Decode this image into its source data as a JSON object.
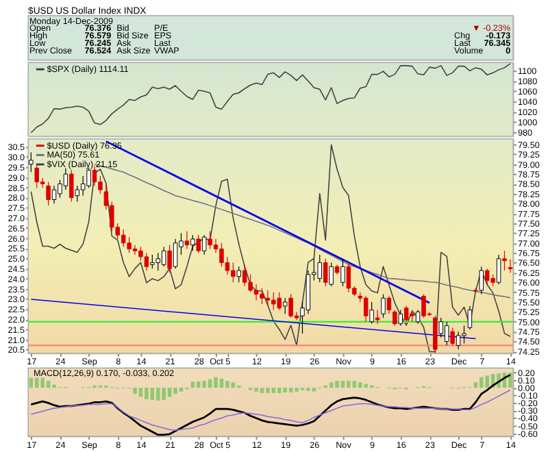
{
  "chart_data": [
    {
      "type": "other",
      "title": "$USD US Dollar Index INDX",
      "annotations": [
        "Monday 14-Dec-2009",
        "Open",
        "76.376",
        "High",
        "76.579",
        "Low",
        "76.245",
        "Prev Close",
        "76.524",
        "Bid",
        "Bid Size",
        "Ask",
        "Ask Size",
        "P/E",
        "EPS",
        "Last",
        "VWAP",
        "▼ -0.23%",
        "Chg",
        "-0.173",
        "Last",
        "76.345",
        "Volume",
        "0"
      ]
    },
    {
      "type": "line",
      "tick_labels": "y",
      "grid": "y",
      "legend": "top left",
      "categories": [
        null,
        null,
        null,
        null,
        null,
        null,
        null,
        null,
        null,
        null,
        null,
        null,
        null,
        null,
        null,
        null,
        null,
        null,
        null,
        null,
        null,
        null,
        null,
        null,
        null,
        null,
        null,
        null,
        null,
        null,
        null,
        null,
        null,
        null,
        null,
        null,
        null,
        null,
        null,
        null,
        null,
        null,
        null,
        null,
        null,
        null,
        null,
        null,
        null,
        null,
        null,
        null,
        null,
        null,
        null,
        null,
        null,
        null,
        null,
        null,
        null,
        null,
        null,
        null,
        null,
        null,
        null,
        null,
        null,
        null,
        null,
        null,
        null,
        null,
        null,
        null,
        null,
        null,
        null,
        null,
        null,
        null,
        null,
        null
      ],
      "ylim": [
        972,
        1116
      ],
      "yticks": [
        980,
        1000,
        1020,
        1040,
        1060,
        1080,
        1100
      ],
      "series": [
        {
          "name": "$SPX (Daily) 1114.11",
          "color": "#404040",
          "values": [
            979,
            990,
            996,
            1007,
            1026,
            1025,
            1028,
            1029,
            1031,
            1029,
            1021,
            998,
            995,
            1003,
            1016,
            1025,
            1033,
            1044,
            1042,
            1049,
            1053,
            1068,
            1065,
            1068,
            1064,
            1071,
            1060,
            1050,
            1044,
            1062,
            1060,
            1057,
            1029,
            1025,
            1040,
            1054,
            1057,
            1065,
            1072,
            1076,
            1073,
            1093,
            1096,
            1087,
            1098,
            1091,
            1081,
            1092,
            1080,
            1067,
            1064,
            1043,
            1067,
            1036,
            1042,
            1046,
            1047,
            1066,
            1069,
            1093,
            1093,
            1099,
            1088,
            1093,
            1110,
            1110,
            1109,
            1094,
            1092,
            1107,
            1105,
            1110,
            1091,
            1096,
            1109,
            1109,
            1100,
            1106,
            1103,
            1092,
            1096,
            1102,
            1106,
            1114
          ]
        }
      ]
    },
    {
      "type": "candlestick",
      "grid": true,
      "legend": "top left",
      "categories": [
        "17",
        null,
        null,
        null,
        null,
        "24",
        null,
        null,
        null,
        null,
        "Sep",
        null,
        null,
        null,
        null,
        "8",
        null,
        null,
        null,
        "14",
        null,
        null,
        null,
        null,
        "21",
        null,
        null,
        null,
        null,
        "28",
        null,
        null,
        "Oct",
        null,
        "5",
        null,
        null,
        null,
        null,
        "12",
        null,
        null,
        null,
        null,
        "19",
        null,
        null,
        null,
        null,
        "26",
        null,
        null,
        null,
        null,
        "Nov",
        null,
        null,
        null,
        null,
        "9",
        null,
        null,
        null,
        null,
        "16",
        null,
        null,
        null,
        null,
        "23",
        null,
        null,
        null,
        null,
        "Dec",
        null,
        null,
        null,
        "7",
        null,
        null,
        null,
        null,
        "14"
      ],
      "ylim": [
        20.32,
        30.89
      ],
      "yticks": [
        20.5,
        {
          "value": 21,
          "label": "21.0"
        },
        21.5,
        {
          "value": 22,
          "label": "22.0"
        },
        22.5,
        {
          "value": 23,
          "label": "23.0"
        },
        23.5,
        {
          "value": 24,
          "label": "24.0"
        },
        24.5,
        {
          "value": 25,
          "label": "25.0"
        },
        25.5,
        {
          "value": 26,
          "label": "26.0"
        },
        26.5,
        {
          "value": 27,
          "label": "27.0"
        },
        27.5,
        {
          "value": 28,
          "label": "28.0"
        },
        28.5,
        {
          "value": 29,
          "label": "29.0"
        },
        29.5,
        {
          "value": 30,
          "label": "30.0"
        },
        30.5
      ],
      "y2lim": [
        74.2,
        79.64
      ],
      "y2ticks": [
        74.25,
        {
          "value": 74.5,
          "label": "74.50"
        },
        74.75,
        {
          "value": 75,
          "label": "75.00"
        },
        75.25,
        {
          "value": 75.5,
          "label": "75.50"
        },
        75.75,
        {
          "value": 76,
          "label": "76.00"
        },
        76.25,
        {
          "value": 76.5,
          "label": "76.50"
        },
        76.75,
        {
          "value": 77,
          "label": "77.00"
        },
        77.25,
        {
          "value": 77.5,
          "label": "77.50"
        },
        77.75,
        {
          "value": 78,
          "label": "78.00"
        },
        78.25,
        {
          "value": 78.5,
          "label": "78.50"
        },
        78.75,
        {
          "value": 79,
          "label": "79.00"
        },
        79.25,
        {
          "value": 79.5,
          "label": "79.50"
        }
      ],
      "ref_lines": [
        {
          "axis": "y2",
          "value": 75.0,
          "color": "#33ee33"
        },
        {
          "axis": "y2",
          "value": 74.4,
          "color": "#ff7f7f"
        }
      ],
      "series": [
        {
          "type": "candlestick",
          "name": "$USD (Daily) 76.35",
          "axis": "y2",
          "color": "#dd0000",
          "colors": [
            "#ffffff",
            "#dd0000",
            "#dd0000",
            "#dd0000",
            "#ffffff",
            "#ffffff",
            "#ffffff",
            "#dd0000",
            "#ffffff",
            "#ffffff",
            "#ffffff",
            "#dd0000",
            "#dd0000",
            "#dd0000",
            "#dd0000",
            "#dd0000",
            "#dd0000",
            "#dd0000",
            "#dd0000",
            "#dd0000",
            "#dd0000",
            "#ffffff",
            "#ffffff",
            "#ffffff",
            "#dd0000",
            "#ffffff",
            "#ffffff",
            "#dd0000",
            "#ffffff",
            "#dd0000",
            "#ffffff",
            "#dd0000",
            "#dd0000",
            "#dd0000",
            "#dd0000",
            "#dd0000",
            "#ffffff",
            "#dd0000",
            "#dd0000",
            "#dd0000",
            "#dd0000",
            "#dd0000",
            "#dd0000",
            "#dd0000",
            "#ffffff",
            "#dd0000",
            "#dd0000",
            "#ffffff",
            "#ffffff",
            "#ffffff",
            "#ffffff",
            "#dd0000",
            "#ffffff",
            "#dd0000",
            "#ffffff",
            "#dd0000",
            "#dd0000",
            "#dd0000",
            "#dd0000",
            "#ffffff",
            "#dd0000",
            "#ffffff",
            "#dd0000",
            "#dd0000",
            "#ffffff",
            "#dd0000",
            "#dd0000",
            "#ffffff",
            "#dd0000",
            "#dd0000",
            "#dd0000",
            "#ffffff",
            "#ffffff",
            "#dd0000",
            "#ffffff",
            "#ffffff",
            "#ffffff",
            "#dd0000",
            "#ffffff",
            "#dd0000",
            "#dd0000",
            "#ffffff",
            "#dd0000",
            "#dd0000"
          ],
          "ohlc": [
            [
              79.0,
              79.3,
              78.8,
              79.1
            ],
            [
              78.9,
              79.0,
              78.4,
              78.55
            ],
            [
              78.55,
              78.65,
              78.4,
              78.5
            ],
            [
              78.45,
              78.55,
              77.95,
              78.1
            ],
            [
              78.1,
              78.45,
              78.0,
              78.35
            ],
            [
              78.25,
              78.6,
              78.15,
              78.5
            ],
            [
              78.45,
              78.9,
              78.35,
              78.75
            ],
            [
              78.75,
              78.85,
              78.05,
              78.15
            ],
            [
              78.2,
              78.45,
              78.05,
              78.35
            ],
            [
              78.35,
              78.7,
              78.2,
              78.5
            ],
            [
              78.45,
              78.9,
              78.4,
              78.85
            ],
            [
              78.85,
              78.95,
              78.45,
              78.55
            ],
            [
              78.55,
              78.7,
              78.25,
              78.35
            ],
            [
              78.3,
              78.5,
              77.85,
              77.95
            ],
            [
              77.95,
              78.05,
              77.3,
              77.4
            ],
            [
              77.4,
              77.5,
              77.1,
              77.2
            ],
            [
              77.2,
              77.35,
              76.9,
              77.0
            ],
            [
              77.0,
              77.15,
              76.75,
              76.85
            ],
            [
              76.85,
              76.95,
              76.7,
              76.8
            ],
            [
              76.8,
              76.9,
              76.55,
              76.65
            ],
            [
              76.65,
              76.75,
              76.3,
              76.4
            ],
            [
              76.45,
              76.7,
              76.35,
              76.5
            ],
            [
              76.5,
              76.75,
              76.3,
              76.6
            ],
            [
              76.45,
              76.9,
              76.4,
              76.8
            ],
            [
              76.8,
              76.95,
              76.25,
              76.35
            ],
            [
              76.4,
              77.1,
              76.35,
              77.0
            ],
            [
              76.9,
              77.25,
              76.7,
              77.05
            ],
            [
              77.05,
              77.3,
              76.85,
              76.95
            ],
            [
              76.95,
              77.2,
              76.8,
              77.1
            ],
            [
              77.1,
              77.2,
              76.75,
              76.8
            ],
            [
              76.8,
              77.2,
              76.7,
              77.15
            ],
            [
              77.1,
              77.3,
              76.85,
              76.95
            ],
            [
              76.95,
              77.1,
              76.75,
              76.85
            ],
            [
              76.85,
              77.0,
              76.4,
              76.5
            ],
            [
              76.5,
              76.65,
              76.2,
              76.3
            ],
            [
              76.3,
              76.5,
              76.0,
              76.15
            ],
            [
              76.15,
              76.4,
              76.0,
              76.3
            ],
            [
              76.3,
              76.45,
              75.9,
              76.0
            ],
            [
              76.0,
              76.2,
              75.75,
              75.8
            ],
            [
              75.8,
              75.95,
              75.55,
              75.7
            ],
            [
              75.7,
              75.85,
              75.45,
              75.6
            ],
            [
              75.6,
              75.8,
              75.4,
              75.55
            ],
            [
              75.55,
              75.75,
              75.3,
              75.45
            ],
            [
              75.6,
              75.75,
              75.3,
              75.35
            ],
            [
              75.4,
              75.6,
              75.2,
              75.5
            ],
            [
              75.6,
              75.7,
              75.1,
              75.15
            ],
            [
              75.15,
              75.25,
              75.05,
              75.1
            ],
            [
              75.15,
              75.5,
              74.7,
              75.35
            ],
            [
              75.3,
              76.3,
              75.2,
              76.2
            ],
            [
              76.2,
              76.6,
              76.05,
              76.25
            ],
            [
              76.1,
              76.7,
              76.0,
              76.5
            ],
            [
              76.5,
              76.6,
              75.9,
              76.0
            ],
            [
              75.95,
              76.5,
              75.9,
              76.4
            ],
            [
              76.4,
              76.45,
              76.2,
              76.25
            ],
            [
              76.0,
              76.6,
              75.9,
              76.4
            ],
            [
              76.4,
              76.5,
              75.75,
              75.85
            ],
            [
              75.85,
              75.9,
              75.65,
              75.7
            ],
            [
              75.65,
              75.75,
              75.5,
              75.6
            ],
            [
              75.6,
              75.65,
              75.0,
              75.15
            ],
            [
              75.0,
              75.5,
              74.95,
              75.3
            ],
            [
              75.1,
              75.3,
              74.95,
              75.05
            ],
            [
              75.2,
              75.7,
              75.1,
              75.6
            ],
            [
              75.6,
              75.65,
              75.2,
              75.3
            ],
            [
              75.25,
              75.3,
              74.9,
              74.95
            ],
            [
              74.95,
              75.3,
              74.9,
              75.2
            ],
            [
              75.35,
              75.4,
              75.0,
              75.05
            ],
            [
              75.2,
              75.3,
              75.0,
              75.15
            ],
            [
              75.0,
              75.3,
              74.95,
              75.25
            ],
            [
              75.65,
              75.7,
              75.1,
              75.15
            ],
            [
              75.2,
              75.25,
              75.15,
              75.18
            ],
            [
              75.1,
              75.15,
              74.2,
              74.3
            ],
            [
              74.7,
              75.1,
              74.6,
              75.0
            ],
            [
              74.5,
              75.0,
              74.4,
              74.9
            ],
            [
              74.75,
              74.85,
              74.4,
              74.45
            ],
            [
              74.4,
              74.75,
              74.3,
              74.65
            ],
            [
              74.65,
              74.9,
              74.45,
              74.7
            ],
            [
              74.85,
              75.4,
              74.8,
              75.3
            ],
            [
              75.8,
              75.85,
              75.75,
              75.78
            ],
            [
              75.8,
              76.4,
              75.7,
              76.3
            ],
            [
              76.3,
              76.35,
              75.95,
              76.05
            ],
            [
              76.1,
              76.2,
              75.9,
              76.0
            ],
            [
              76.0,
              76.7,
              75.95,
              76.6
            ],
            [
              76.6,
              76.8,
              76.3,
              76.55
            ],
            [
              76.376,
              76.579,
              76.245,
              76.345
            ]
          ]
        },
        {
          "type": "line",
          "name": "MA(50) 75.61",
          "axis": "y2",
          "color": "#707080",
          "values": [
            null,
            null,
            null,
            null,
            null,
            null,
            null,
            null,
            null,
            null,
            null,
            79.0,
            78.96,
            78.92,
            78.88,
            78.84,
            78.8,
            78.73,
            78.67,
            78.6,
            78.53,
            78.47,
            78.4,
            78.33,
            78.27,
            78.2,
            78.16,
            78.12,
            78.08,
            78.04,
            78.0,
            77.95,
            77.9,
            77.85,
            77.8,
            77.75,
            77.7,
            77.65,
            77.6,
            77.55,
            77.5,
            77.45,
            77.39,
            77.32,
            77.26,
            77.19,
            77.13,
            77.06,
            77.0,
            76.92,
            76.84,
            76.76,
            76.69,
            76.61,
            76.53,
            76.45,
            76.4,
            76.35,
            76.3,
            76.25,
            76.2,
            76.15,
            76.1,
            76.09,
            76.08,
            76.06,
            76.05,
            76.04,
            76.03,
            76.01,
            76.0,
            75.97,
            75.93,
            75.9,
            75.87,
            75.83,
            75.8,
            75.77,
            75.75,
            75.72,
            75.69,
            75.66,
            75.64,
            75.61
          ]
        },
        {
          "type": "line",
          "name": "$VIX (Daily) 21.15",
          "axis": "y",
          "color": "#404040",
          "values": [
            28.3,
            26.8,
            25.6,
            25.6,
            25.5,
            25.7,
            25.5,
            25.4,
            25.3,
            25.7,
            26.8,
            29.2,
            29.4,
            28.7,
            26.1,
            25.9,
            24.8,
            24.1,
            24.5,
            24.8,
            23.8,
            24.0,
            23.9,
            24.1,
            24.5,
            23.5,
            23.7,
            24.6,
            25.6,
            25.8,
            26.0,
            25.9,
            27.6,
            28.8,
            28.9,
            27.0,
            25.7,
            24.6,
            23.7,
            23.4,
            23.4,
            22.7,
            21.9,
            21.5,
            21.0,
            21.7,
            20.7,
            22.8,
            24.8,
            25.0,
            28.2,
            25.9,
            30.6,
            29.4,
            28.5,
            28.1,
            26.1,
            24.6,
            23.7,
            23.4,
            23.3,
            24.6,
            23.7,
            22.8,
            22.2,
            21.7,
            22.4,
            22.1,
            21.6,
            20.4,
            20.4,
            25.3,
            25.1,
            22.6,
            22.2,
            22.6,
            21.7,
            23.4,
            24.4,
            23.7,
            23.3,
            22.4,
            21.3,
            21.15
          ]
        },
        {
          "type": "line",
          "axis": "y2",
          "color": "#0000ee",
          "values": [
            null,
            null,
            null,
            null,
            null,
            null,
            null,
            null,
            null,
            null,
            null,
            null,
            null,
            79.58,
            null,
            null,
            null,
            null,
            null,
            null,
            null,
            null,
            null,
            null,
            null,
            null,
            null,
            null,
            null,
            null,
            null,
            null,
            null,
            null,
            null,
            null,
            null,
            null,
            null,
            null,
            null,
            null,
            null,
            null,
            null,
            null,
            null,
            null,
            null,
            null,
            null,
            null,
            null,
            null,
            null,
            null,
            null,
            null,
            null,
            null,
            null,
            null,
            null,
            null,
            null,
            null,
            null,
            null,
            null,
            75.48,
            null,
            null,
            null,
            null,
            null,
            null,
            null,
            null,
            null,
            null,
            null,
            null,
            null,
            null
          ]
        },
        {
          "type": "line",
          "axis": "y2",
          "color": "#0000ee",
          "values": [
            75.57,
            null,
            null,
            null,
            null,
            null,
            null,
            null,
            null,
            null,
            null,
            null,
            null,
            null,
            null,
            null,
            null,
            null,
            null,
            null,
            null,
            null,
            null,
            null,
            null,
            null,
            null,
            null,
            null,
            null,
            null,
            null,
            null,
            null,
            null,
            null,
            null,
            null,
            null,
            null,
            null,
            null,
            null,
            null,
            null,
            null,
            null,
            null,
            null,
            null,
            null,
            null,
            null,
            null,
            null,
            null,
            null,
            null,
            null,
            null,
            null,
            null,
            null,
            null,
            null,
            null,
            null,
            null,
            null,
            null,
            null,
            null,
            null,
            null,
            null,
            null,
            null,
            74.57,
            null,
            null,
            null,
            null,
            null,
            null
          ]
        }
      ]
    },
    {
      "type": "bar",
      "grid": true,
      "annotations": [
        "MACD(12,26,9) 0.170, -0.033, 0.202"
      ],
      "categories": [
        "17",
        null,
        null,
        null,
        null,
        "24",
        null,
        null,
        null,
        null,
        "Sep",
        null,
        null,
        null,
        null,
        "8",
        null,
        null,
        null,
        "14",
        null,
        null,
        null,
        null,
        "21",
        null,
        null,
        null,
        null,
        "28",
        null,
        null,
        "Oct",
        null,
        "5",
        null,
        null,
        null,
        null,
        "12",
        null,
        null,
        null,
        null,
        "19",
        null,
        null,
        null,
        null,
        "26",
        null,
        null,
        null,
        null,
        "Nov",
        null,
        null,
        null,
        null,
        "9",
        null,
        null,
        null,
        null,
        "16",
        null,
        null,
        null,
        null,
        "23",
        null,
        null,
        null,
        null,
        "Dec",
        null,
        null,
        null,
        "7",
        null,
        null,
        null,
        null,
        "14"
      ],
      "ylim": [
        -0.64,
        0.26
      ],
      "yticks": [
        {
          "value": -0.6,
          "label": "-0.60"
        },
        {
          "value": -0.5,
          "label": "-0.50"
        },
        {
          "value": -0.4,
          "label": "-0.40"
        },
        {
          "value": -0.3,
          "label": "-0.30"
        },
        {
          "value": -0.2,
          "label": "-0.20"
        },
        {
          "value": -0.1,
          "label": "-0.10"
        },
        {
          "value": 0,
          "label": "0.00"
        },
        {
          "value": 0.1,
          "label": "0.10"
        },
        {
          "value": 0.2,
          "label": "0.20"
        }
      ],
      "series": [
        {
          "type": "bar",
          "color": "#90c870",
          "values": [
            0.13,
            0.13,
            0.13,
            0.09,
            0.04,
            0.01,
            0.01,
            0.0,
            0.0,
            0.01,
            0.01,
            0.03,
            0.03,
            0.03,
            0.01,
            -0.01,
            -0.01,
            -0.01,
            -0.08,
            -0.12,
            -0.15,
            -0.16,
            -0.17,
            -0.16,
            -0.12,
            -0.08,
            -0.05,
            -0.02,
            0.08,
            0.08,
            0.09,
            0.11,
            0.14,
            0.12,
            0.09,
            0.07,
            0.03,
            0.0,
            -0.03,
            -0.05,
            -0.07,
            -0.07,
            -0.07,
            -0.07,
            -0.06,
            -0.06,
            -0.05,
            -0.03,
            -0.04,
            -0.05,
            -0.01,
            0.03,
            0.07,
            0.09,
            0.09,
            0.09,
            0.09,
            0.07,
            0.05,
            0.03,
            0.01,
            0.0,
            -0.01,
            -0.02,
            -0.01,
            -0.02,
            0.0,
            0.01,
            0.02,
            0.01,
            0.0,
            0.0,
            0.0,
            -0.01,
            -0.01,
            0.01,
            0.01,
            0.07,
            0.14,
            0.16,
            0.18,
            0.19,
            0.2,
            0.2
          ]
        },
        {
          "type": "line",
          "color": "#000000",
          "values": [
            -0.22,
            -0.2,
            -0.18,
            -0.2,
            -0.23,
            -0.25,
            -0.24,
            -0.24,
            -0.23,
            -0.22,
            -0.21,
            -0.19,
            -0.19,
            -0.18,
            -0.2,
            -0.27,
            -0.33,
            -0.38,
            -0.44,
            -0.5,
            -0.54,
            -0.58,
            -0.62,
            -0.62,
            -0.61,
            -0.57,
            -0.53,
            -0.49,
            -0.45,
            -0.42,
            -0.39,
            -0.34,
            -0.28,
            -0.28,
            -0.28,
            -0.29,
            -0.31,
            -0.33,
            -0.37,
            -0.4,
            -0.43,
            -0.45,
            -0.46,
            -0.47,
            -0.48,
            -0.49,
            -0.5,
            -0.49,
            -0.47,
            -0.44,
            -0.37,
            -0.3,
            -0.23,
            -0.18,
            -0.15,
            -0.14,
            -0.13,
            -0.14,
            -0.16,
            -0.19,
            -0.22,
            -0.24,
            -0.26,
            -0.27,
            -0.27,
            -0.28,
            -0.27,
            -0.26,
            -0.25,
            -0.26,
            -0.27,
            -0.28,
            -0.28,
            -0.29,
            -0.29,
            -0.28,
            -0.28,
            -0.19,
            -0.08,
            -0.03,
            0.03,
            0.08,
            0.13,
            0.17
          ]
        },
        {
          "type": "line",
          "color": "#8866dd",
          "values": [
            -0.35,
            -0.33,
            -0.31,
            -0.29,
            -0.27,
            -0.26,
            -0.25,
            -0.24,
            -0.23,
            -0.23,
            -0.22,
            -0.22,
            -0.22,
            -0.21,
            -0.21,
            -0.26,
            -0.32,
            -0.37,
            -0.4,
            -0.43,
            -0.46,
            -0.49,
            -0.51,
            -0.53,
            -0.55,
            -0.56,
            -0.55,
            -0.54,
            -0.53,
            -0.5,
            -0.48,
            -0.45,
            -0.42,
            -0.4,
            -0.37,
            -0.36,
            -0.34,
            -0.33,
            -0.34,
            -0.35,
            -0.36,
            -0.38,
            -0.39,
            -0.4,
            -0.42,
            -0.43,
            -0.45,
            -0.46,
            -0.43,
            -0.39,
            -0.36,
            -0.33,
            -0.3,
            -0.27,
            -0.24,
            -0.23,
            -0.22,
            -0.21,
            -0.21,
            -0.22,
            -0.23,
            -0.24,
            -0.25,
            -0.25,
            -0.26,
            -0.26,
            -0.27,
            -0.27,
            -0.27,
            -0.27,
            -0.27,
            -0.28,
            -0.28,
            -0.28,
            -0.28,
            -0.29,
            -0.29,
            -0.26,
            -0.22,
            -0.19,
            -0.15,
            -0.11,
            -0.07,
            -0.03
          ]
        }
      ]
    }
  ]
}
